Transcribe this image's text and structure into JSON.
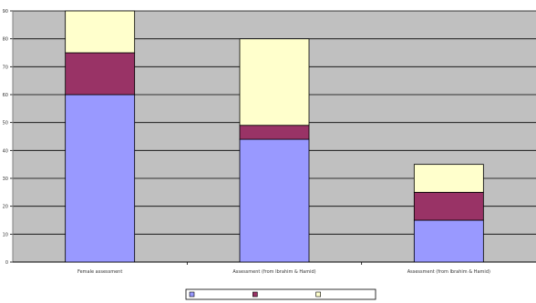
{
  "chart_data": {
    "type": "bar",
    "stacked": true,
    "title": "",
    "xlabel": "",
    "ylabel": "",
    "ylim": [
      0,
      90
    ],
    "ytick_step": 10,
    "yticks": [
      "0",
      "10",
      "20",
      "30",
      "40",
      "50",
      "60",
      "70",
      "80",
      "90"
    ],
    "grid": true,
    "legend_position": "bottom",
    "categories": [
      "Female assessment",
      "Assessment (from Ibrahim & Hamid)",
      "Assessment (from Ibrahim & Hamid)"
    ],
    "series": [
      {
        "name": "",
        "color": "#9999ff",
        "values": [
          60,
          44,
          15
        ]
      },
      {
        "name": "",
        "color": "#993366",
        "values": [
          15,
          5,
          10
        ]
      },
      {
        "name": "",
        "color": "#ffffcc",
        "values": [
          15,
          31,
          10
        ]
      }
    ],
    "plot_background": "#c0c0c0",
    "gridline_color": "#000000"
  }
}
